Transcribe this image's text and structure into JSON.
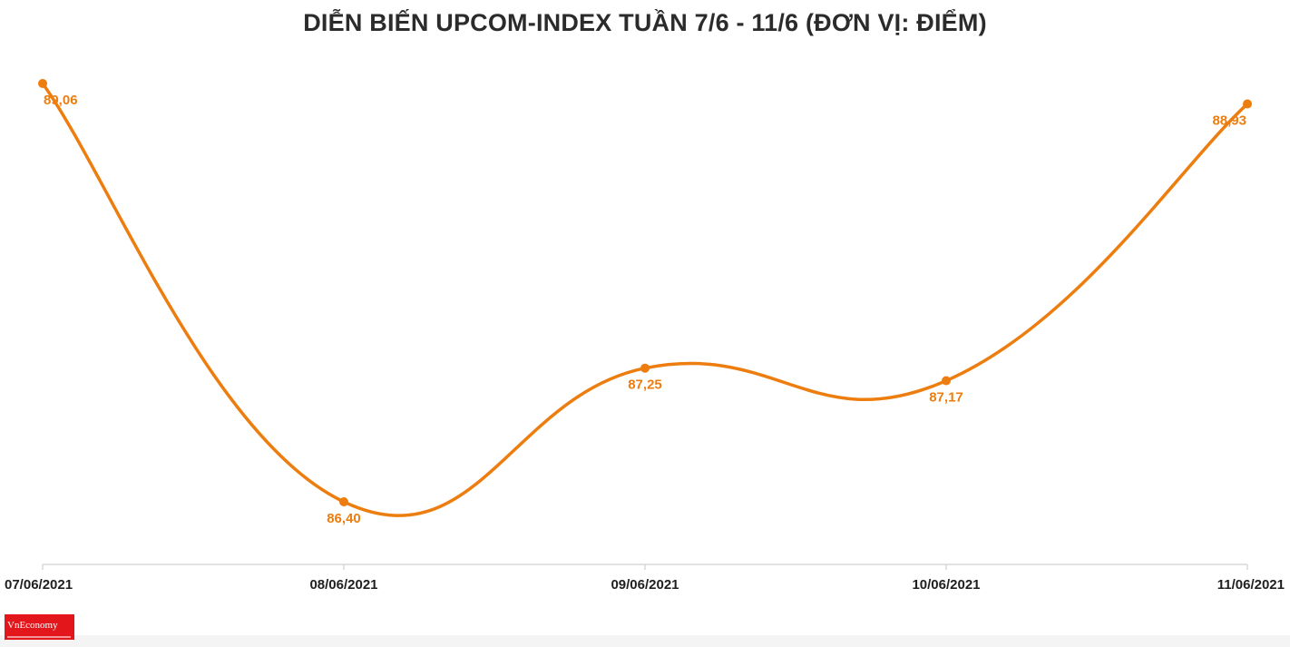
{
  "chart_data": {
    "type": "line",
    "title": "DIỄN BIẾN UPCOM-INDEX TUẦN 7/6 - 11/6 (ĐƠN VỊ: ĐIỂM)",
    "categories": [
      "07/06/2021",
      "08/06/2021",
      "09/06/2021",
      "10/06/2021",
      "11/06/2021"
    ],
    "values": [
      89.06,
      86.4,
      87.25,
      87.17,
      88.93
    ],
    "value_labels": [
      "89,06",
      "86,40",
      "87,25",
      "87,17",
      "88,93"
    ],
    "ylim": [
      86.0,
      89.2
    ],
    "grid": false,
    "legend": "none",
    "colors": {
      "line": "#ed7d0e",
      "axis": "#d9d9d9",
      "tick_text": "#1f1f1f",
      "title": "#2b2b2b"
    }
  },
  "logo": {
    "text": "VnEconomy",
    "color": "#e3161b"
  }
}
